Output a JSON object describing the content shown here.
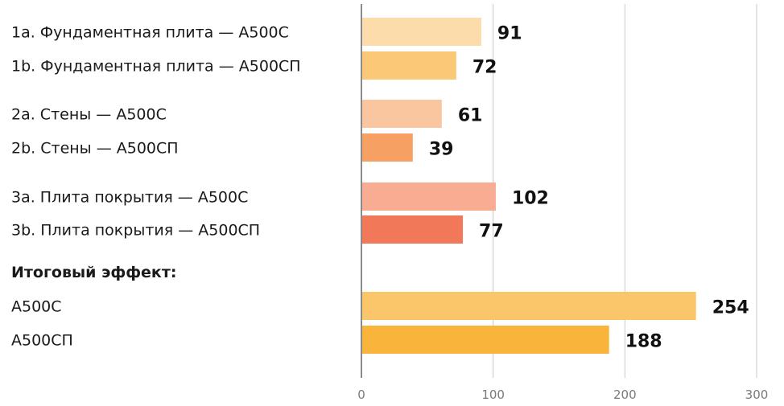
{
  "chart_data": {
    "type": "bar",
    "orientation": "horizontal",
    "title": "",
    "xlabel": "",
    "ylabel": "",
    "xlim": [
      0,
      300
    ],
    "x_ticks": [
      0,
      100,
      200,
      300
    ],
    "grid": true,
    "heading": "Итоговый эффект:",
    "bars": [
      {
        "label": "1a. Фундаментная плита — А500С",
        "value": 91,
        "color": "#FCDCAA"
      },
      {
        "label": "1b. Фундаментная плита — А500СП",
        "value": 72,
        "color": "#FBC877"
      },
      {
        "label": "2a. Стены — А500С",
        "value": 61,
        "color": "#F9C6A0"
      },
      {
        "label": "2b. Стены — А500СП",
        "value": 39,
        "color": "#F7A063"
      },
      {
        "label": "3a. Плита покрытия — А500С",
        "value": 102,
        "color": "#F8AD93"
      },
      {
        "label": "3b. Плита покрытия — А500СП",
        "value": 77,
        "color": "#F2785A"
      },
      {
        "label": "А500С",
        "value": 254,
        "color": "#FBC569"
      },
      {
        "label": "А500СП",
        "value": 188,
        "color": "#F9B43C"
      }
    ]
  }
}
